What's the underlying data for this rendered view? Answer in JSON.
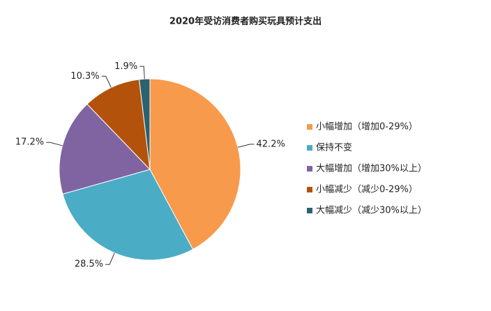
{
  "chart_data": {
    "type": "pie",
    "title": "2020年受访消费者购买玩具预计支出",
    "categories": [
      "小幅增加（增加0-29%）",
      "保持不变",
      "大幅增加（增加30%以上）",
      "小幅减少（减少0-29%）",
      "大幅减少（减少30%以上）"
    ],
    "values": [
      42.2,
      28.5,
      17.2,
      10.3,
      1.9
    ],
    "value_labels": [
      "42.2%",
      "28.5%",
      "17.2%",
      "10.3%",
      "1.9%"
    ],
    "colors": [
      "#f79a4c",
      "#4bacc6",
      "#8064a2",
      "#b3520b",
      "#2b6170"
    ],
    "legend": "right"
  }
}
